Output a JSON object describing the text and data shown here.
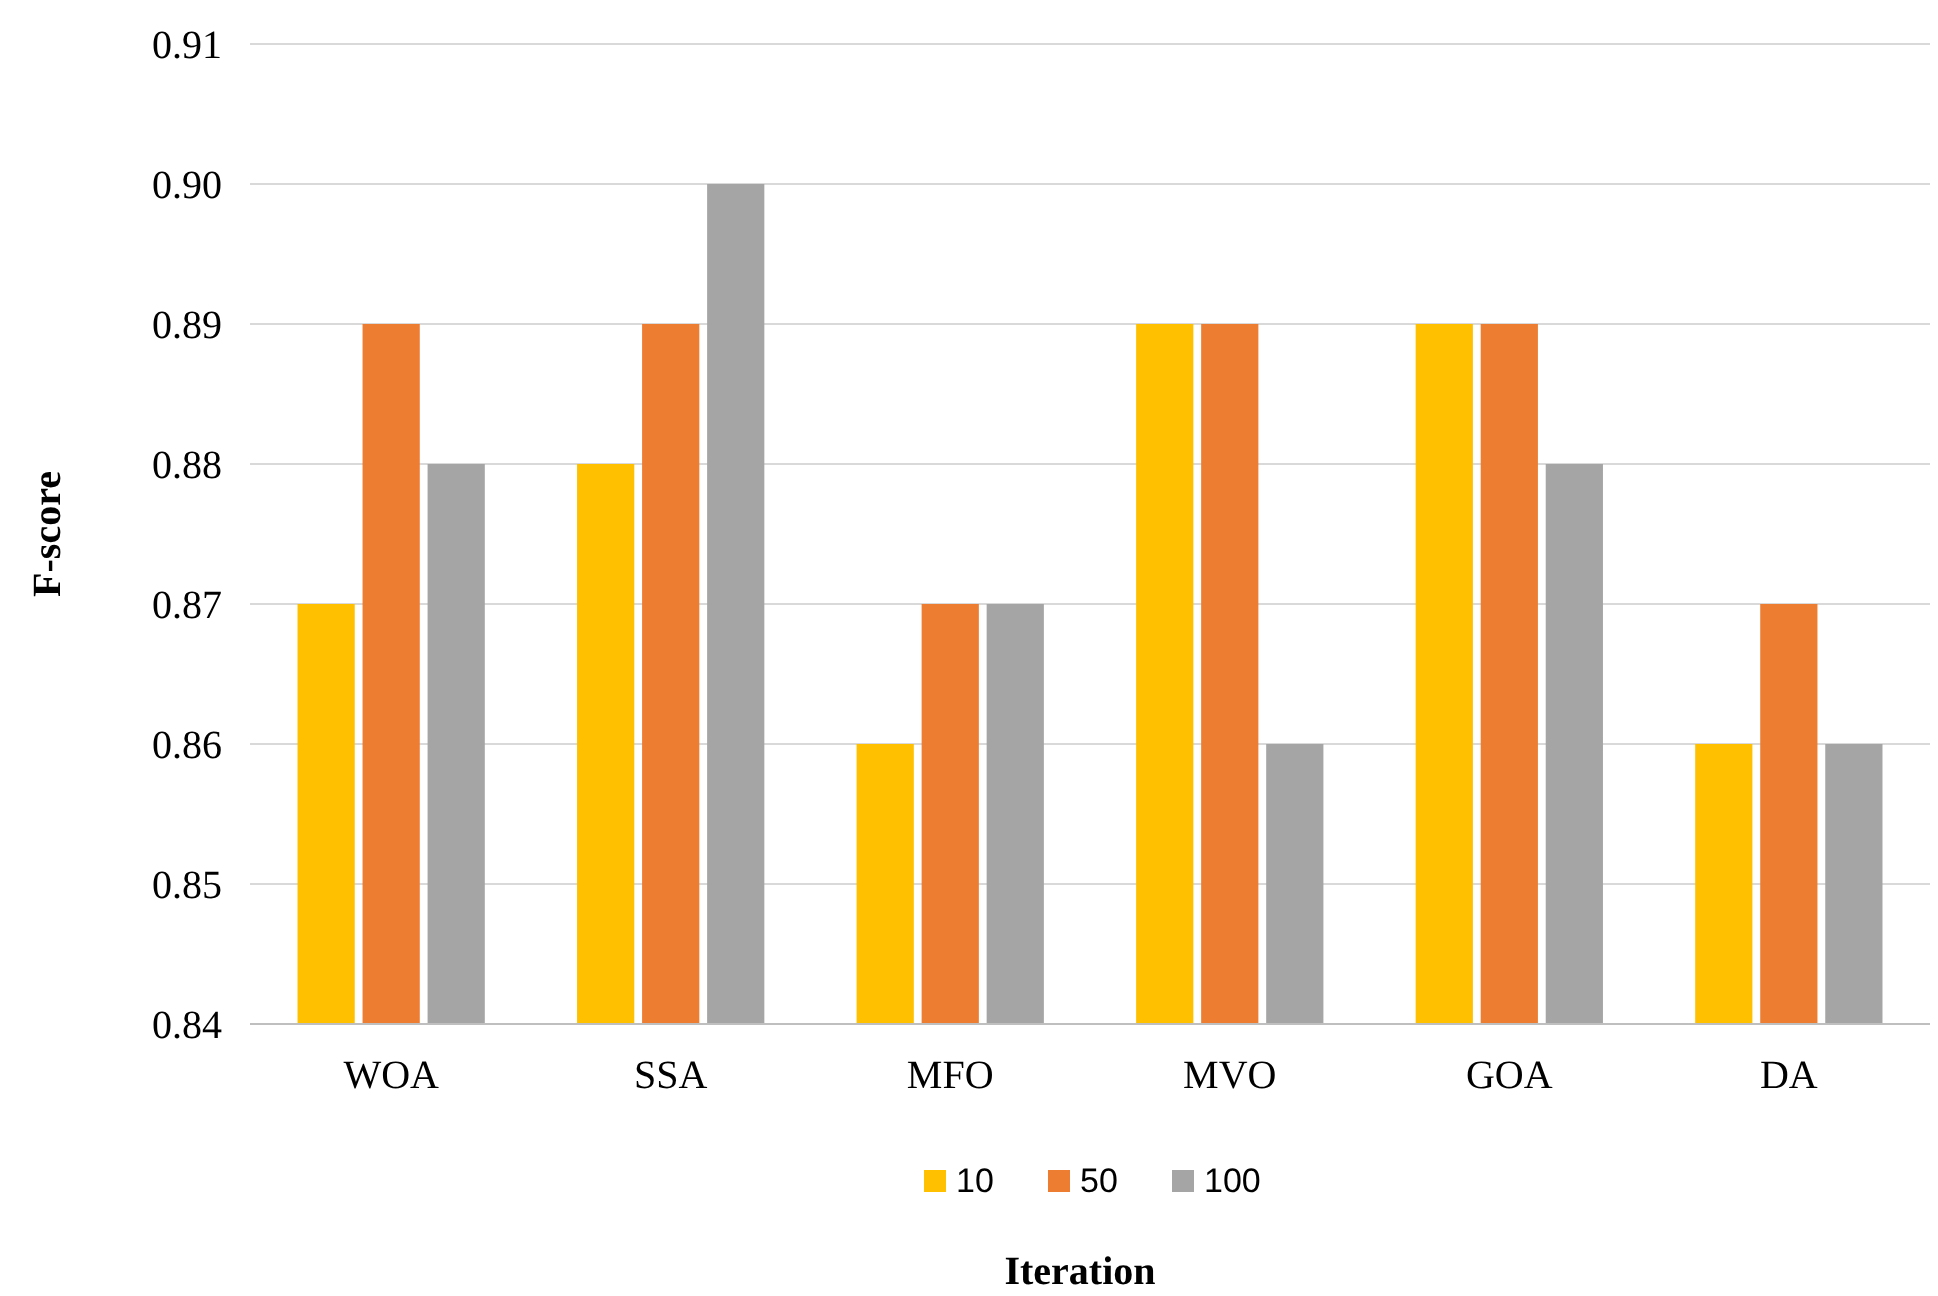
{
  "chart_data": {
    "type": "bar",
    "xlabel": "Iteration",
    "ylabel": "F-score",
    "categories": [
      "WOA",
      "SSA",
      "MFO",
      "MVO",
      "GOA",
      "DA"
    ],
    "series": [
      {
        "name": "10",
        "color": "#ffc000",
        "values": [
          0.87,
          0.88,
          0.86,
          0.89,
          0.89,
          0.86
        ]
      },
      {
        "name": "50",
        "color": "#ed7d31",
        "values": [
          0.89,
          0.89,
          0.87,
          0.89,
          0.89,
          0.87
        ]
      },
      {
        "name": "100",
        "color": "#a5a5a5",
        "values": [
          0.88,
          0.9,
          0.87,
          0.86,
          0.88,
          0.86
        ]
      }
    ],
    "ylim": [
      0.84,
      0.91
    ],
    "yticks": [
      0.84,
      0.85,
      0.86,
      0.87,
      0.88,
      0.89,
      {
        "value": 0.9,
        "label": "0.90"
      },
      0.91
    ],
    "grid": "y",
    "legend": "bottom"
  }
}
